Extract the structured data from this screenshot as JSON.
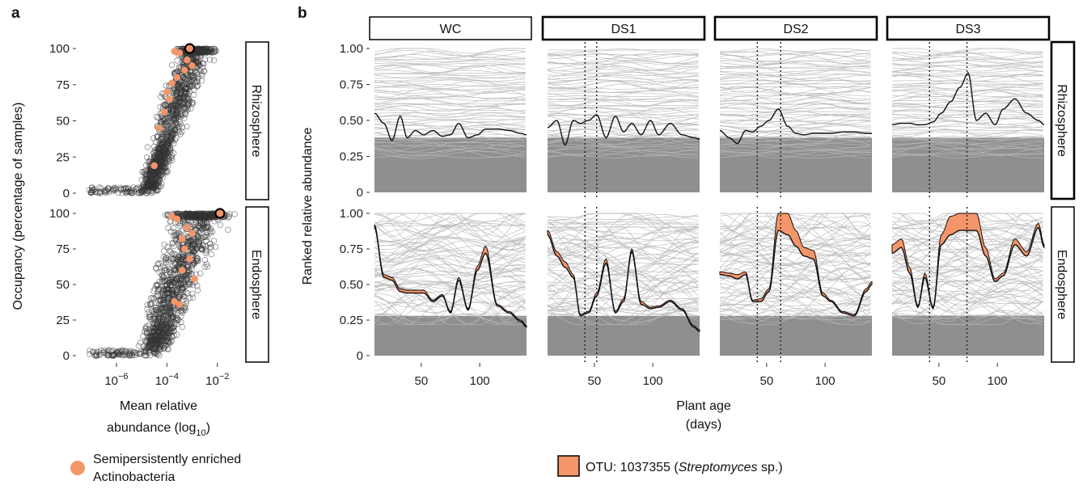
{
  "chart_data": [
    {
      "panel_label": "a",
      "type": "scatter",
      "ylabel": "Occupancy (percentage of samples)",
      "xlabel_main": "Mean relative",
      "xlabel_sub": "abundance (log",
      "xlabel_subscript": "10",
      "xlabel_close": ")",
      "x_tick_base": "10",
      "x_ticks": [
        -6,
        -4,
        -2
      ],
      "y_ticks": [
        "0",
        "25",
        "50",
        "75",
        "100"
      ],
      "ylim": [
        0,
        100
      ],
      "xlim_log10": [
        -7.6,
        -1.0
      ],
      "legend": {
        "line1": "Semipersistently enriched",
        "line2": "Actinobacteria",
        "color": "#f4956a"
      },
      "facets": [
        {
          "strip": "Rhizosphere",
          "highlight_point": [
            -3.1,
            100
          ],
          "enriched_points": [
            [
              -3.9,
              65
            ],
            [
              -4.1,
              56
            ],
            [
              -3.6,
              80
            ],
            [
              -3.3,
              85
            ],
            [
              -3.0,
              88
            ],
            [
              -3.2,
              92
            ],
            [
              -4.0,
              70
            ],
            [
              -4.3,
              45
            ],
            [
              -3.5,
              97
            ],
            [
              -3.7,
              98
            ],
            [
              -4.5,
              19
            ],
            [
              -3.8,
              76
            ]
          ]
        },
        {
          "strip": "Endosphere",
          "highlight_point": [
            -1.9,
            100
          ],
          "enriched_points": [
            [
              -3.4,
              82
            ],
            [
              -3.3,
              75
            ],
            [
              -3.1,
              68
            ],
            [
              -2.9,
              54
            ],
            [
              -3.6,
              96
            ],
            [
              -3.2,
              90
            ],
            [
              -3.5,
              36
            ],
            [
              -3.7,
              38
            ],
            [
              -3.0,
              86
            ],
            [
              -3.8,
              98
            ],
            [
              -3.4,
              60
            ]
          ]
        }
      ]
    },
    {
      "panel_label": "b",
      "type": "area",
      "ylabel": "Ranked relative abundance",
      "xlabel_line1": "Plant age",
      "xlabel_line2": "(days)",
      "x_ticks": [
        "50",
        "100"
      ],
      "xlim": [
        10,
        140
      ],
      "y_ticks": [
        "0",
        "0.25",
        "0.50",
        "0.75",
        "1.00"
      ],
      "ylim": [
        0,
        1
      ],
      "legend": {
        "prefix": "OTU: 1037355 (",
        "italic": "Streptomyces",
        "suffix": " sp.)",
        "color": "#f4956a"
      },
      "columns": [
        {
          "strip": "WC",
          "vlines": []
        },
        {
          "strip": "DS1",
          "vlines": [
            42,
            52
          ]
        },
        {
          "strip": "DS2",
          "vlines": [
            42,
            62
          ]
        },
        {
          "strip": "DS3",
          "vlines": [
            42,
            74
          ]
        }
      ],
      "rows": [
        {
          "strip": "Rhizosphere"
        },
        {
          "strip": "Endosphere"
        }
      ],
      "series": [
        {
          "name": "WC Rhizosphere",
          "x": [
            10,
            18,
            25,
            32,
            38,
            45,
            52,
            60,
            68,
            75,
            82,
            90,
            98,
            105,
            115,
            125,
            135,
            140
          ],
          "y": [
            0.55,
            0.48,
            0.36,
            0.53,
            0.38,
            0.43,
            0.4,
            0.43,
            0.39,
            0.4,
            0.48,
            0.38,
            0.4,
            0.44,
            0.44,
            0.43,
            0.41,
            0.4
          ]
        },
        {
          "name": "DS1 Rhizosphere",
          "x": [
            10,
            18,
            25,
            32,
            38,
            45,
            52,
            60,
            68,
            75,
            82,
            90,
            98,
            105,
            115,
            125,
            135,
            140
          ],
          "y": [
            0.45,
            0.5,
            0.33,
            0.5,
            0.48,
            0.5,
            0.54,
            0.38,
            0.53,
            0.42,
            0.48,
            0.4,
            0.5,
            0.4,
            0.48,
            0.4,
            0.38,
            0.37
          ]
        },
        {
          "name": "DS2 Rhizosphere",
          "x": [
            10,
            18,
            25,
            32,
            38,
            45,
            52,
            60,
            68,
            75,
            82,
            90,
            98,
            105,
            115,
            125,
            135,
            140
          ],
          "y": [
            0.43,
            0.38,
            0.34,
            0.43,
            0.42,
            0.46,
            0.5,
            0.58,
            0.46,
            0.41,
            0.4,
            0.41,
            0.41,
            0.41,
            0.42,
            0.42,
            0.41,
            0.41
          ]
        },
        {
          "name": "DS3 Rhizosphere",
          "x": [
            10,
            18,
            25,
            32,
            38,
            45,
            52,
            60,
            68,
            75,
            82,
            90,
            98,
            105,
            115,
            125,
            135,
            140
          ],
          "y": [
            0.47,
            0.48,
            0.48,
            0.47,
            0.47,
            0.49,
            0.55,
            0.63,
            0.73,
            0.83,
            0.5,
            0.55,
            0.47,
            0.58,
            0.65,
            0.55,
            0.5,
            0.47
          ]
        },
        {
          "name": "WC Endosphere",
          "x": [
            10,
            18,
            25,
            32,
            38,
            45,
            52,
            60,
            68,
            75,
            82,
            90,
            98,
            105,
            115,
            125,
            135,
            140
          ],
          "y": [
            0.9,
            0.55,
            0.53,
            0.45,
            0.44,
            0.44,
            0.44,
            0.38,
            0.42,
            0.3,
            0.53,
            0.32,
            0.6,
            0.72,
            0.35,
            0.3,
            0.24,
            0.2
          ],
          "band": [
            0.92,
            0.57,
            0.55,
            0.47,
            0.46,
            0.46,
            0.46,
            0.39,
            0.43,
            0.31,
            0.55,
            0.33,
            0.63,
            0.77,
            0.36,
            0.31,
            0.25,
            0.21
          ]
        },
        {
          "name": "DS1 Endosphere",
          "x": [
            10,
            18,
            25,
            32,
            38,
            45,
            52,
            60,
            68,
            75,
            82,
            90,
            98,
            105,
            115,
            125,
            135,
            140
          ],
          "y": [
            0.85,
            0.7,
            0.62,
            0.55,
            0.28,
            0.3,
            0.42,
            0.65,
            0.3,
            0.38,
            0.73,
            0.36,
            0.33,
            0.34,
            0.38,
            0.32,
            0.2,
            0.17
          ],
          "band": [
            0.88,
            0.73,
            0.66,
            0.57,
            0.29,
            0.31,
            0.44,
            0.68,
            0.31,
            0.4,
            0.75,
            0.38,
            0.34,
            0.35,
            0.39,
            0.33,
            0.21,
            0.18
          ]
        },
        {
          "name": "DS2 Endosphere",
          "x": [
            10,
            18,
            25,
            32,
            38,
            45,
            52,
            60,
            68,
            75,
            82,
            90,
            98,
            105,
            115,
            125,
            135,
            140
          ],
          "y": [
            0.57,
            0.56,
            0.54,
            0.57,
            0.38,
            0.38,
            0.45,
            0.88,
            0.85,
            0.77,
            0.7,
            0.68,
            0.42,
            0.38,
            0.3,
            0.28,
            0.45,
            0.5
          ],
          "band": [
            0.59,
            0.58,
            0.57,
            0.59,
            0.39,
            0.4,
            0.47,
            1.0,
            1.0,
            0.88,
            0.76,
            0.74,
            0.44,
            0.39,
            0.31,
            0.29,
            0.47,
            0.52
          ]
        },
        {
          "name": "DS3 Endosphere",
          "x": [
            10,
            18,
            25,
            32,
            38,
            45,
            52,
            60,
            68,
            75,
            82,
            90,
            98,
            105,
            115,
            125,
            135,
            140
          ],
          "y": [
            0.72,
            0.76,
            0.58,
            0.34,
            0.55,
            0.33,
            0.78,
            0.85,
            0.88,
            0.88,
            0.88,
            0.7,
            0.52,
            0.56,
            0.78,
            0.7,
            0.9,
            0.76
          ],
          "band": [
            0.78,
            0.82,
            0.62,
            0.35,
            0.58,
            0.34,
            0.85,
            0.98,
            1.0,
            1.0,
            1.0,
            0.76,
            0.54,
            0.58,
            0.82,
            0.73,
            0.93,
            0.78
          ]
        }
      ]
    }
  ]
}
